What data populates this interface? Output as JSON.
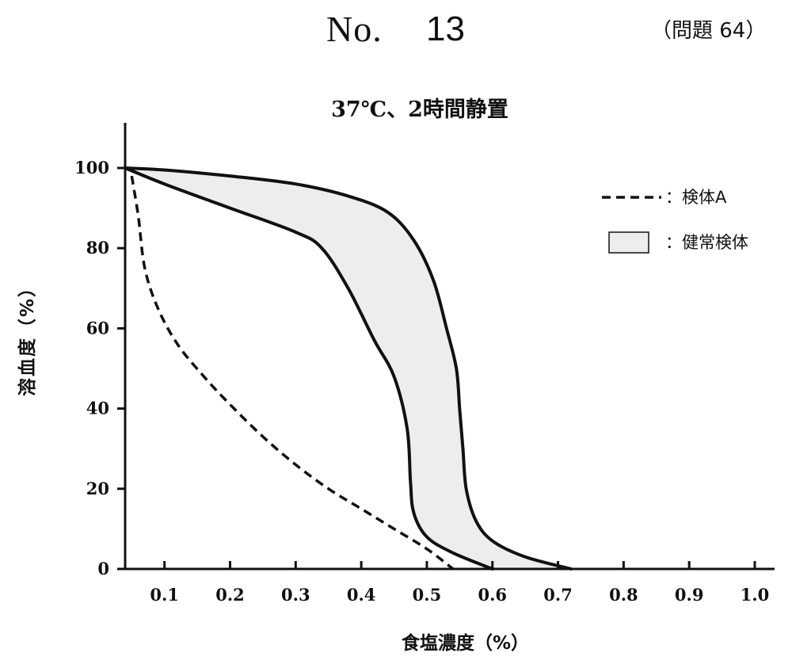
{
  "header": {
    "no_label": "No.",
    "no_number": "13",
    "question_ref": "（問題 64）"
  },
  "chart_data": {
    "type": "line",
    "title": "37℃、2時間静置",
    "xlabel": "食塩濃度（%）",
    "ylabel": "溶血度（%）",
    "xlim": [
      0.04,
      1.0
    ],
    "ylim": [
      0,
      110
    ],
    "x_ticks": [
      0.1,
      0.2,
      0.3,
      0.4,
      0.5,
      0.6,
      0.7,
      0.8,
      0.9,
      1.0
    ],
    "x_tick_labels": [
      "0.1",
      "0.2",
      "0.3",
      "0.4",
      "0.5",
      "0.6",
      "0.7",
      "0.8",
      "0.9",
      "1.0"
    ],
    "y_ticks": [
      0,
      20,
      40,
      60,
      80,
      100
    ],
    "y_tick_labels": [
      "0",
      "20",
      "40",
      "60",
      "80",
      "100"
    ],
    "grid": false,
    "legend_position": "top-right",
    "series": [
      {
        "name": "：検体A",
        "style": "dashed",
        "color": "#111111",
        "x": [
          0.05,
          0.06,
          0.07,
          0.09,
          0.12,
          0.16,
          0.2,
          0.25,
          0.3,
          0.35,
          0.4,
          0.45,
          0.5,
          0.54
        ],
        "y": [
          98,
          88,
          75,
          65,
          56,
          48,
          41,
          33,
          26,
          20,
          15,
          10,
          5,
          0
        ]
      },
      {
        "name": "：健常検体",
        "style": "band",
        "fill": "#ededed",
        "color": "#111111",
        "upper": {
          "x": [
            0.04,
            0.1,
            0.2,
            0.3,
            0.38,
            0.44,
            0.48,
            0.51,
            0.53,
            0.545,
            0.55,
            0.555,
            0.56,
            0.575,
            0.6,
            0.65,
            0.72
          ],
          "y": [
            100,
            99.5,
            98,
            96,
            93,
            89,
            82,
            72,
            60,
            50,
            40,
            30,
            20,
            12,
            7,
            3,
            0
          ]
        },
        "lower": {
          "x": [
            0.04,
            0.1,
            0.2,
            0.3,
            0.34,
            0.38,
            0.42,
            0.45,
            0.47,
            0.475,
            0.48,
            0.5,
            0.54,
            0.6
          ],
          "y": [
            100,
            96,
            90,
            84,
            80,
            70,
            57,
            48,
            35,
            22,
            14,
            8,
            4,
            0
          ]
        }
      }
    ]
  }
}
